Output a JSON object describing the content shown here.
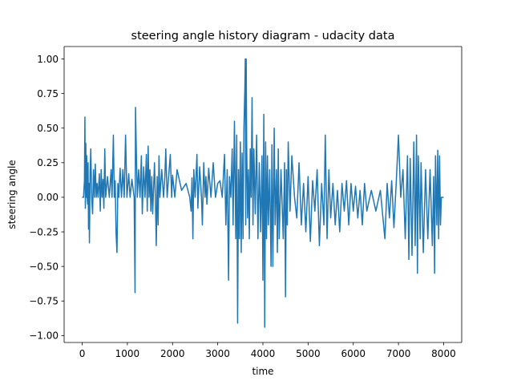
{
  "chart_data": {
    "type": "line",
    "title": "steering angle history diagram - udacity data",
    "xlabel": "time",
    "ylabel": "steering angle",
    "xlim": [
      -400,
      8400
    ],
    "ylim": [
      -1.05,
      1.09
    ],
    "xticks": [
      0,
      1000,
      2000,
      3000,
      4000,
      5000,
      6000,
      7000,
      8000
    ],
    "xtick_labels": [
      "0",
      "1000",
      "2000",
      "3000",
      "4000",
      "5000",
      "6000",
      "7000",
      "8000"
    ],
    "yticks": [
      -1.0,
      -0.75,
      -0.5,
      -0.25,
      0.0,
      0.25,
      0.5,
      0.75,
      1.0
    ],
    "ytick_labels": [
      "−1.00",
      "−0.75",
      "−0.50",
      "−0.25",
      "0.00",
      "0.25",
      "0.50",
      "0.75",
      "1.00"
    ],
    "grid": false,
    "series": [
      {
        "color": "#1f77b4",
        "points": [
          [
            0,
            0
          ],
          [
            30,
            0
          ],
          [
            50,
            0.12
          ],
          [
            60,
            0.58
          ],
          [
            70,
            -0.08
          ],
          [
            80,
            0.39
          ],
          [
            90,
            0.0
          ],
          [
            100,
            0.3
          ],
          [
            110,
            0.0
          ],
          [
            120,
            -0.05
          ],
          [
            130,
            0.25
          ],
          [
            140,
            -0.23
          ],
          [
            150,
            0.1
          ],
          [
            160,
            -0.33
          ],
          [
            175,
            0.17
          ],
          [
            190,
            0.35
          ],
          [
            210,
            0.0
          ],
          [
            230,
            -0.12
          ],
          [
            250,
            0.2
          ],
          [
            270,
            0.0
          ],
          [
            290,
            0.24
          ],
          [
            310,
            0.0
          ],
          [
            330,
            0.1
          ],
          [
            350,
            0.0
          ],
          [
            380,
            0.17
          ],
          [
            400,
            -0.1
          ],
          [
            420,
            0.2
          ],
          [
            440,
            0.0
          ],
          [
            460,
            0.13
          ],
          [
            480,
            -0.08
          ],
          [
            500,
            0.35
          ],
          [
            520,
            0.0
          ],
          [
            560,
            0.15
          ],
          [
            600,
            0.0
          ],
          [
            640,
            0.2
          ],
          [
            660,
            0.0
          ],
          [
            690,
            0.45
          ],
          [
            710,
            0.0
          ],
          [
            730,
            0.12
          ],
          [
            750,
            -0.26
          ],
          [
            770,
            -0.4
          ],
          [
            790,
            0.1
          ],
          [
            810,
            0.0
          ],
          [
            840,
            0.21
          ],
          [
            870,
            0.0
          ],
          [
            900,
            0.2
          ],
          [
            930,
            0.0
          ],
          [
            960,
            0.45
          ],
          [
            990,
            0.0
          ],
          [
            1030,
            0.17
          ],
          [
            1060,
            0.0
          ],
          [
            1100,
            0.13
          ],
          [
            1150,
            0.0
          ],
          [
            1170,
            -0.69
          ],
          [
            1180,
            0.65
          ],
          [
            1200,
            0.3
          ],
          [
            1220,
            0.0
          ],
          [
            1250,
            0.2
          ],
          [
            1280,
            0.0
          ],
          [
            1310,
            0.3
          ],
          [
            1330,
            -0.12
          ],
          [
            1360,
            0.22
          ],
          [
            1390,
            0.0
          ],
          [
            1420,
            0.31
          ],
          [
            1440,
            -0.1
          ],
          [
            1460,
            0.37
          ],
          [
            1480,
            0.0
          ],
          [
            1500,
            0.2
          ],
          [
            1520,
            -0.1
          ],
          [
            1540,
            0.15
          ],
          [
            1560,
            -0.12
          ],
          [
            1600,
            0.25
          ],
          [
            1620,
            0.0
          ],
          [
            1640,
            -0.35
          ],
          [
            1660,
            0.15
          ],
          [
            1680,
            -0.2
          ],
          [
            1700,
            0.3
          ],
          [
            1720,
            0.0
          ],
          [
            1760,
            0.2
          ],
          [
            1800,
            0.0
          ],
          [
            1830,
            0.15
          ],
          [
            1850,
            0.35
          ],
          [
            1880,
            0.0
          ],
          [
            1950,
            0.31
          ],
          [
            1980,
            0.0
          ],
          [
            2000,
            0.16
          ],
          [
            2050,
            0.0
          ],
          [
            2100,
            0.2
          ],
          [
            2200,
            0.05
          ],
          [
            2300,
            0.1
          ],
          [
            2380,
            0.0
          ],
          [
            2410,
            -0.1
          ],
          [
            2430,
            0.14
          ],
          [
            2450,
            -0.3
          ],
          [
            2470,
            0.2
          ],
          [
            2500,
            0.0
          ],
          [
            2540,
            0.31
          ],
          [
            2560,
            -0.08
          ],
          [
            2600,
            0.22
          ],
          [
            2640,
            0.0
          ],
          [
            2660,
            -0.2
          ],
          [
            2690,
            0.25
          ],
          [
            2720,
            0.0
          ],
          [
            2740,
            0.15
          ],
          [
            2760,
            -0.05
          ],
          [
            2800,
            0.21
          ],
          [
            2850,
            0.0
          ],
          [
            2900,
            0.25
          ],
          [
            2950,
            0.0
          ],
          [
            3000,
            0.1
          ],
          [
            3050,
            0.12
          ],
          [
            3100,
            0.0
          ],
          [
            3150,
            0.31
          ],
          [
            3180,
            -0.2
          ],
          [
            3210,
            0.2
          ],
          [
            3240,
            -0.6
          ],
          [
            3260,
            0.15
          ],
          [
            3290,
            0.0
          ],
          [
            3320,
            0.35
          ],
          [
            3340,
            -0.2
          ],
          [
            3370,
            0.55
          ],
          [
            3400,
            -0.3
          ],
          [
            3420,
            0.45
          ],
          [
            3440,
            -0.91
          ],
          [
            3460,
            0.2
          ],
          [
            3480,
            -0.3
          ],
          [
            3500,
            0.4
          ],
          [
            3520,
            -0.4
          ],
          [
            3540,
            0.32
          ],
          [
            3560,
            -0.3
          ],
          [
            3580,
            0.5
          ],
          [
            3600,
            0.78
          ],
          [
            3610,
            1.0
          ],
          [
            3620,
            -0.2
          ],
          [
            3630,
            1.0
          ],
          [
            3640,
            0.4
          ],
          [
            3660,
            -0.15
          ],
          [
            3680,
            0.2
          ],
          [
            3700,
            -0.3
          ],
          [
            3720,
            0.35
          ],
          [
            3740,
            0.0
          ],
          [
            3760,
            0.72
          ],
          [
            3780,
            -0.2
          ],
          [
            3800,
            0.35
          ],
          [
            3830,
            -0.12
          ],
          [
            3860,
            0.45
          ],
          [
            3890,
            -0.3
          ],
          [
            3920,
            0.25
          ],
          [
            3950,
            -0.25
          ],
          [
            3980,
            0.3
          ],
          [
            4000,
            -0.6
          ],
          [
            4020,
            0.6
          ],
          [
            4040,
            -0.94
          ],
          [
            4060,
            0.4
          ],
          [
            4080,
            -0.3
          ],
          [
            4100,
            0.3
          ],
          [
            4120,
            -0.2
          ],
          [
            4150,
            0.2
          ],
          [
            4180,
            -0.5
          ],
          [
            4200,
            0.38
          ],
          [
            4220,
            -0.5
          ],
          [
            4250,
            0.5
          ],
          [
            4270,
            -0.2
          ],
          [
            4300,
            0.2
          ],
          [
            4320,
            -0.4
          ],
          [
            4340,
            0.35
          ],
          [
            4360,
            -0.3
          ],
          [
            4400,
            0.2
          ],
          [
            4450,
            -0.3
          ],
          [
            4480,
            0.25
          ],
          [
            4500,
            -0.72
          ],
          [
            4520,
            0.2
          ],
          [
            4540,
            -0.2
          ],
          [
            4560,
            0.4
          ],
          [
            4600,
            -0.1
          ],
          [
            4640,
            0.3
          ],
          [
            4700,
            0.0
          ],
          [
            4750,
            -0.15
          ],
          [
            4800,
            0.25
          ],
          [
            4850,
            -0.2
          ],
          [
            4900,
            0.1
          ],
          [
            4950,
            -0.25
          ],
          [
            5000,
            0.15
          ],
          [
            5050,
            -0.32
          ],
          [
            5100,
            0.12
          ],
          [
            5150,
            -0.1
          ],
          [
            5200,
            0.2
          ],
          [
            5250,
            -0.35
          ],
          [
            5300,
            0.1
          ],
          [
            5350,
            -0.2
          ],
          [
            5380,
            0.45
          ],
          [
            5420,
            -0.3
          ],
          [
            5460,
            0.2
          ],
          [
            5500,
            -0.15
          ],
          [
            5550,
            0.1
          ],
          [
            5600,
            -0.2
          ],
          [
            5650,
            0.05
          ],
          [
            5700,
            -0.25
          ],
          [
            5750,
            0.1
          ],
          [
            5800,
            -0.1
          ],
          [
            5850,
            0.12
          ],
          [
            5900,
            -0.2
          ],
          [
            5950,
            0.1
          ],
          [
            6000,
            -0.1
          ],
          [
            6050,
            0.08
          ],
          [
            6100,
            -0.15
          ],
          [
            6150,
            0.05
          ],
          [
            6200,
            -0.2
          ],
          [
            6250,
            0.1
          ],
          [
            6300,
            -0.1
          ],
          [
            6400,
            0.05
          ],
          [
            6500,
            -0.1
          ],
          [
            6600,
            0.05
          ],
          [
            6700,
            -0.3
          ],
          [
            6750,
            0.1
          ],
          [
            6800,
            -0.15
          ],
          [
            6850,
            0.12
          ],
          [
            6900,
            -0.22
          ],
          [
            6950,
            0.1
          ],
          [
            7000,
            0.45
          ],
          [
            7050,
            0.0
          ],
          [
            7100,
            0.2
          ],
          [
            7150,
            -0.3
          ],
          [
            7200,
            0.3
          ],
          [
            7230,
            -0.45
          ],
          [
            7260,
            0.28
          ],
          [
            7300,
            -0.42
          ],
          [
            7340,
            0.4
          ],
          [
            7370,
            -0.35
          ],
          [
            7400,
            0.45
          ],
          [
            7420,
            -0.55
          ],
          [
            7440,
            0.3
          ],
          [
            7480,
            -0.3
          ],
          [
            7500,
            0.25
          ],
          [
            7550,
            -0.4
          ],
          [
            7600,
            0.2
          ],
          [
            7650,
            -0.3
          ],
          [
            7700,
            0.2
          ],
          [
            7750,
            -0.35
          ],
          [
            7780,
            0.15
          ],
          [
            7800,
            -0.55
          ],
          [
            7820,
            0.3
          ],
          [
            7850,
            -0.2
          ],
          [
            7870,
            0.34
          ],
          [
            7890,
            -0.3
          ],
          [
            7910,
            0.3
          ],
          [
            7930,
            -0.2
          ],
          [
            7950,
            0.0
          ],
          [
            8000,
            0.0
          ]
        ]
      }
    ]
  }
}
